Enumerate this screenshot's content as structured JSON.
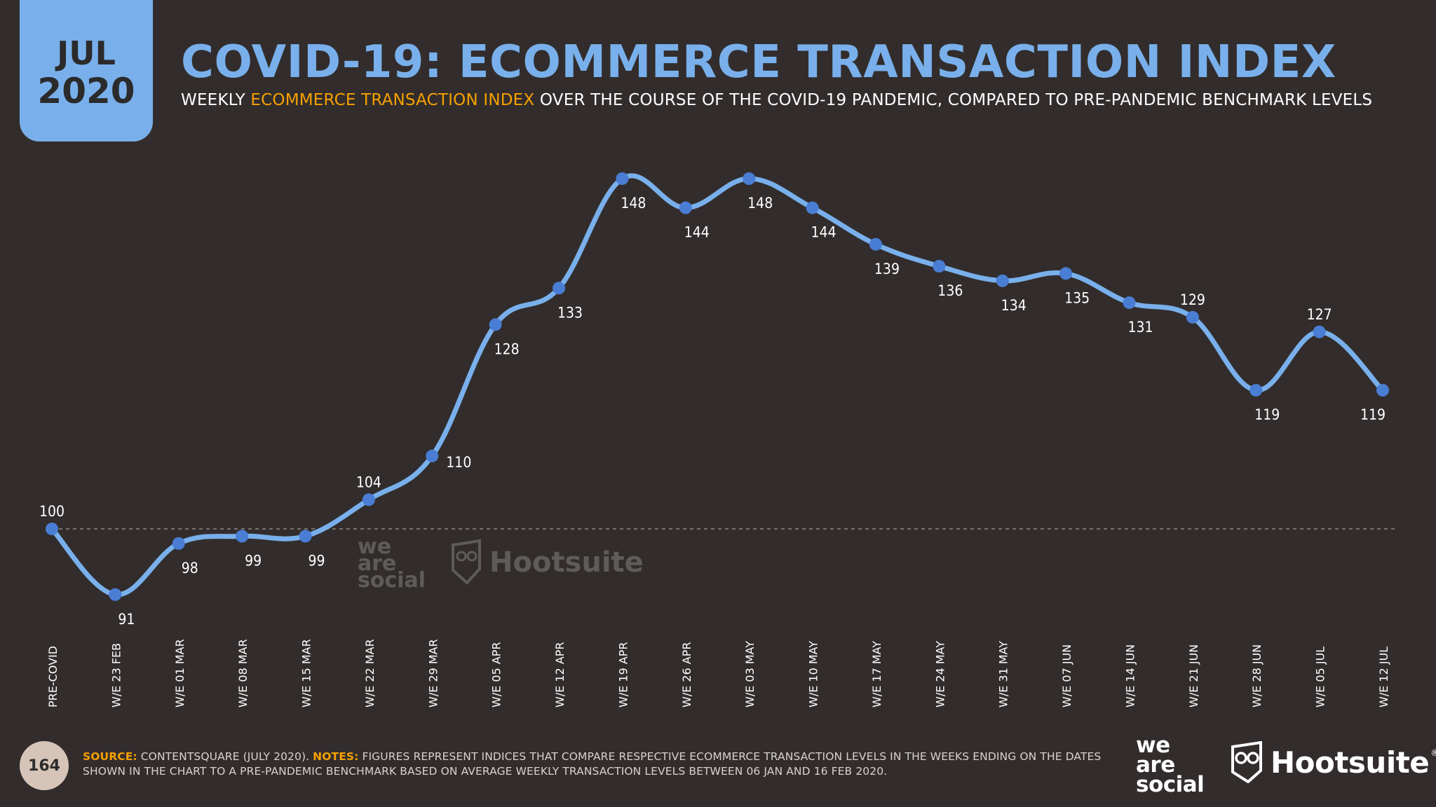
{
  "header": {
    "badge_month": "JUL",
    "badge_year": "2020",
    "title": "COVID-19: ECOMMERCE TRANSACTION INDEX",
    "subtitle_pre": "WEEKLY ",
    "subtitle_highlight": "ECOMMERCE TRANSACTION INDEX",
    "subtitle_post": " OVER THE COURSE OF THE COVID-19 PANDEMIC, COMPARED TO PRE-PANDEMIC BENCHMARK LEVELS"
  },
  "chart_data": {
    "type": "line",
    "title": "COVID-19: ECOMMERCE TRANSACTION INDEX",
    "xlabel": "",
    "ylabel": "",
    "categories": [
      "PRE-COVID",
      "W/E 23 FEB",
      "W/E 01 MAR",
      "W/E 08 MAR",
      "W/E 15 MAR",
      "W/E 22 MAR",
      "W/E 29 MAR",
      "W/E 05 APR",
      "W/E 12 APR",
      "W/E 19 APR",
      "W/E 26 APR",
      "W/E 03 MAY",
      "W/E 10 MAY",
      "W/E 17 MAY",
      "W/E 24 MAY",
      "W/E 31 MAY",
      "W/E 07 JUN",
      "W/E 14 JUN",
      "W/E 21 JUN",
      "W/E 28 JUN",
      "W/E 05 JUL",
      "W/E 12 JUL"
    ],
    "series": [
      {
        "values": [
          100,
          91,
          98,
          99,
          99,
          104,
          110,
          128,
          133,
          148,
          144,
          148,
          144,
          139,
          136,
          134,
          135,
          131,
          129,
          119,
          127,
          119
        ]
      }
    ],
    "label_placement": [
      "above",
      "below",
      "below",
      "below",
      "below",
      "above",
      "right",
      "below",
      "below",
      "below",
      "below",
      "below",
      "below",
      "below",
      "below",
      "below",
      "below",
      "below",
      "above",
      "below",
      "above",
      "below"
    ],
    "baseline": 100,
    "ylim": [
      86,
      152
    ],
    "grid": false,
    "legend": "none",
    "colors": {
      "line": "#79b0ec",
      "marker": "#4a7dd4",
      "baseline": "#8f8782",
      "label": "#ffffff"
    }
  },
  "watermark": {
    "was_lines": [
      "we",
      "are",
      "social"
    ],
    "hootsuite": "Hootsuite"
  },
  "footer": {
    "page_number": "164",
    "source_key": "SOURCE:",
    "source_text": " CONTENTSQUARE (JULY 2020). ",
    "notes_key": "NOTES:",
    "notes_text": " FIGURES REPRESENT INDICES THAT COMPARE RESPECTIVE ECOMMERCE TRANSACTION LEVELS IN THE WEEKS ENDING ON THE DATES SHOWN IN THE CHART TO A PRE-PANDEMIC BENCHMARK BASED ON AVERAGE WEEKLY TRANSACTION LEVELS BETWEEN 06 JAN AND 16 FEB 2020.",
    "logo_was_lines": [
      "we",
      "are",
      "social"
    ],
    "logo_hootsuite": "Hootsuite",
    "logo_reg": "®"
  }
}
